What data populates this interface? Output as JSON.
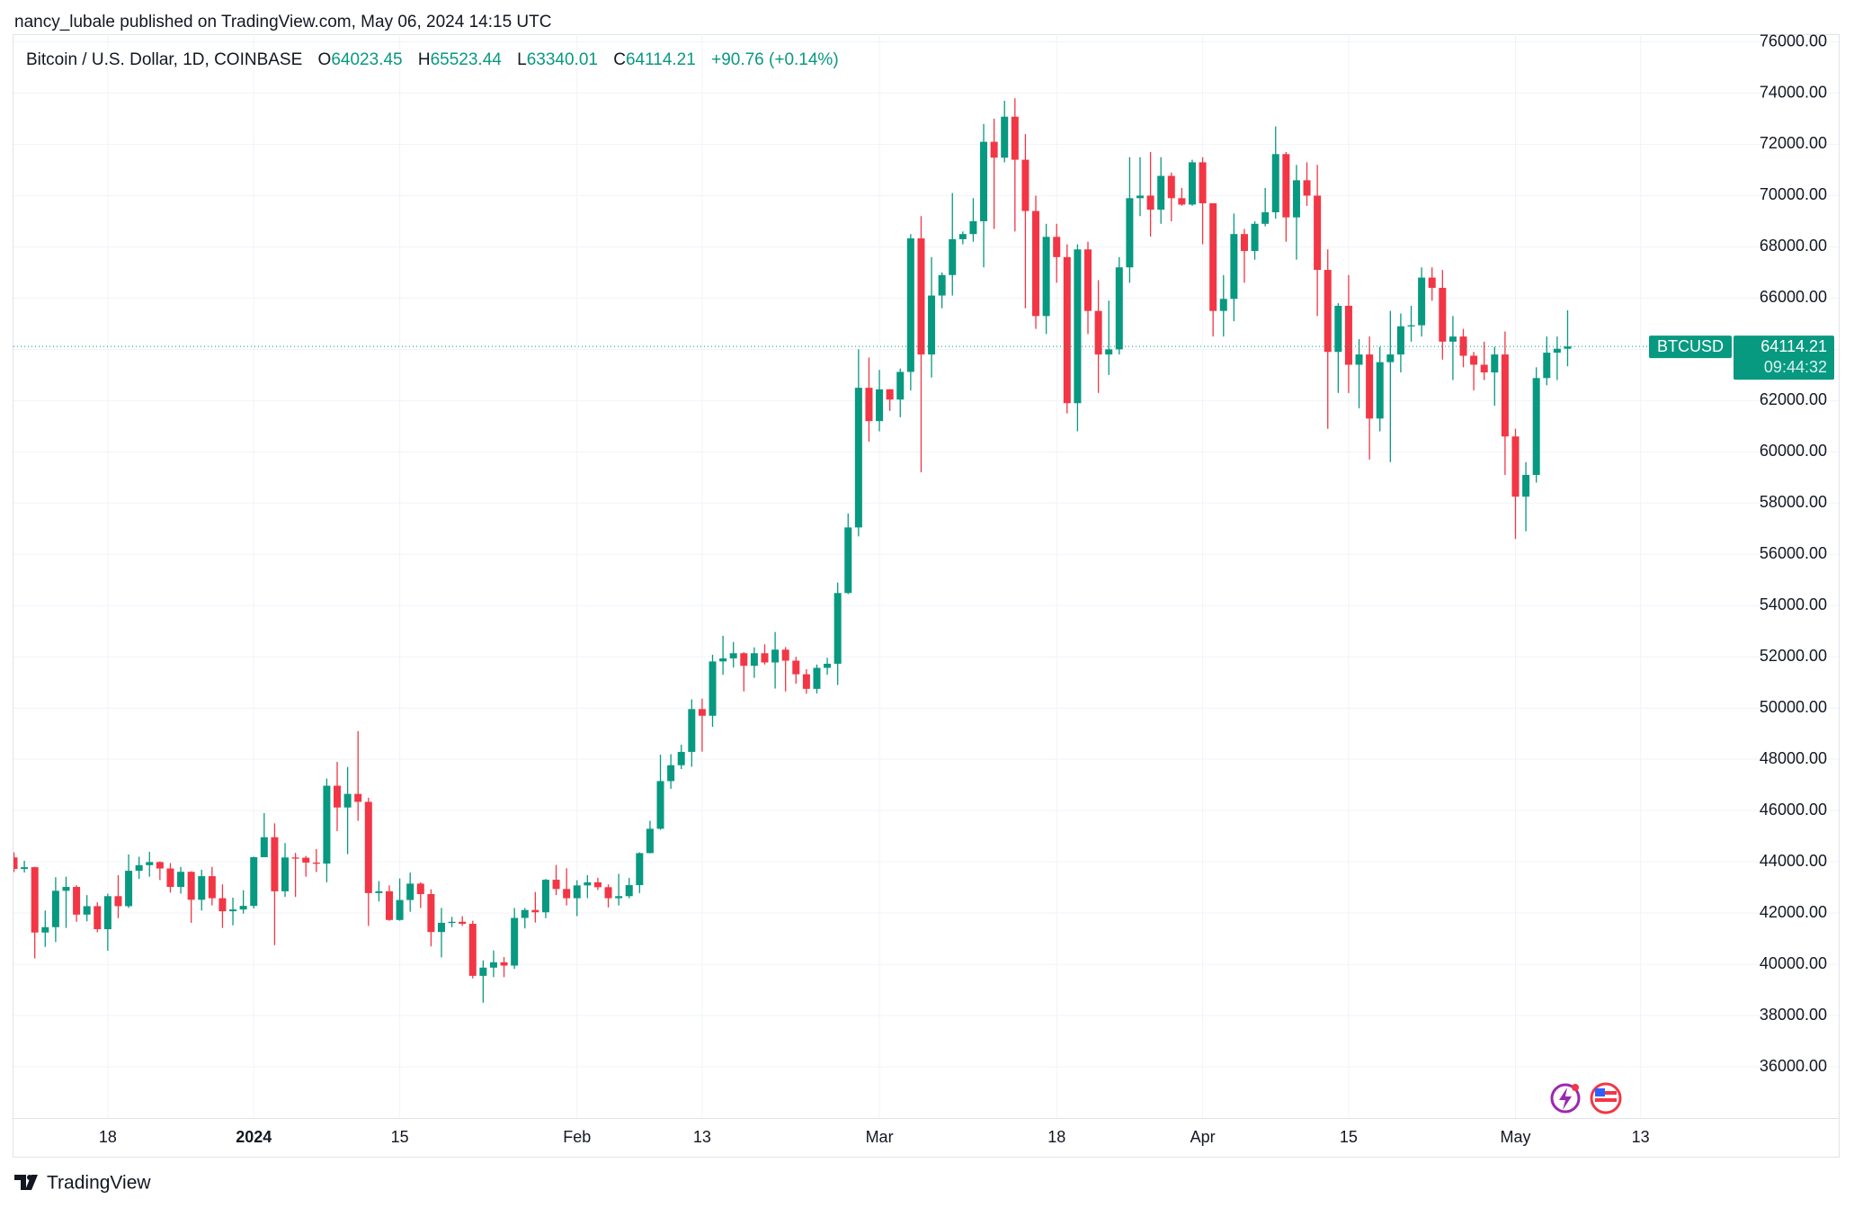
{
  "header": {
    "text": "nancy_lubale published on TradingView.com, May 06, 2024 14:15 UTC"
  },
  "chart_data": {
    "type": "candlestick",
    "legend": {
      "symbol": "Bitcoin / U.S. Dollar, 1D, COINBASE",
      "o": "O",
      "h": "H",
      "l": "L",
      "c": "C",
      "change": "+90.76",
      "change_pct": "(+0.14%)"
    },
    "last_price_tag": {
      "symbol": "BTCUSD",
      "countdown": "09:44:32"
    },
    "up_color": "#089981",
    "down_color": "#f23645",
    "grid": true,
    "xlim": [
      "2023-12-09",
      "2024-06-01"
    ],
    "xticks": [
      {
        "value": "2023-12-18",
        "label": "18"
      },
      {
        "value": "2024-01-01",
        "label": "2024",
        "bold": true
      },
      {
        "value": "2024-01-15",
        "label": "15"
      },
      {
        "value": "2024-02-01",
        "label": "Feb"
      },
      {
        "value": "2024-02-13",
        "label": "13"
      },
      {
        "value": "2024-03-01",
        "label": "Mar"
      },
      {
        "value": "2024-03-18",
        "label": "18"
      },
      {
        "value": "2024-04-01",
        "label": "Apr"
      },
      {
        "value": "2024-04-15",
        "label": "15"
      },
      {
        "value": "2024-05-01",
        "label": "May"
      },
      {
        "value": "2024-05-13",
        "label": "13"
      }
    ],
    "ylim": [
      34000,
      76300
    ],
    "yticks": [
      {
        "value": 76000,
        "label": "76000.00"
      },
      {
        "value": 74000,
        "label": "74000.00"
      },
      {
        "value": 72000,
        "label": "72000.00"
      },
      {
        "value": 70000,
        "label": "70000.00"
      },
      {
        "value": 68000,
        "label": "68000.00"
      },
      {
        "value": 66000,
        "label": "66000.00"
      },
      {
        "value": 64000,
        "label": "64000.00"
      },
      {
        "value": 62000,
        "label": "62000.00"
      },
      {
        "value": 60000,
        "label": "60000.00"
      },
      {
        "value": 58000,
        "label": "58000.00"
      },
      {
        "value": 56000,
        "label": "56000.00"
      },
      {
        "value": 54000,
        "label": "54000.00"
      },
      {
        "value": 52000,
        "label": "52000.00"
      },
      {
        "value": 50000,
        "label": "50000.00"
      },
      {
        "value": 48000,
        "label": "48000.00"
      },
      {
        "value": 46000,
        "label": "46000.00"
      },
      {
        "value": 44000,
        "label": "44000.00"
      },
      {
        "value": 42000,
        "label": "42000.00"
      },
      {
        "value": 40000,
        "label": "40000.00"
      },
      {
        "value": 38000,
        "label": "38000.00"
      },
      {
        "value": 36000,
        "label": "36000.00"
      }
    ],
    "x": [
      "2023-12-09",
      "2023-12-10",
      "2023-12-11",
      "2023-12-12",
      "2023-12-13",
      "2023-12-14",
      "2023-12-15",
      "2023-12-16",
      "2023-12-17",
      "2023-12-18",
      "2023-12-19",
      "2023-12-20",
      "2023-12-21",
      "2023-12-22",
      "2023-12-23",
      "2023-12-24",
      "2023-12-25",
      "2023-12-26",
      "2023-12-27",
      "2023-12-28",
      "2023-12-29",
      "2023-12-30",
      "2023-12-31",
      "2024-01-01",
      "2024-01-02",
      "2024-01-03",
      "2024-01-04",
      "2024-01-05",
      "2024-01-06",
      "2024-01-07",
      "2024-01-08",
      "2024-01-09",
      "2024-01-10",
      "2024-01-11",
      "2024-01-12",
      "2024-01-13",
      "2024-01-14",
      "2024-01-15",
      "2024-01-16",
      "2024-01-17",
      "2024-01-18",
      "2024-01-19",
      "2024-01-20",
      "2024-01-21",
      "2024-01-22",
      "2024-01-23",
      "2024-01-24",
      "2024-01-25",
      "2024-01-26",
      "2024-01-27",
      "2024-01-28",
      "2024-01-29",
      "2024-01-30",
      "2024-01-31",
      "2024-02-01",
      "2024-02-02",
      "2024-02-03",
      "2024-02-04",
      "2024-02-05",
      "2024-02-06",
      "2024-02-07",
      "2024-02-08",
      "2024-02-09",
      "2024-02-10",
      "2024-02-11",
      "2024-02-12",
      "2024-02-13",
      "2024-02-14",
      "2024-02-15",
      "2024-02-16",
      "2024-02-17",
      "2024-02-18",
      "2024-02-19",
      "2024-02-20",
      "2024-02-21",
      "2024-02-22",
      "2024-02-23",
      "2024-02-24",
      "2024-02-25",
      "2024-02-26",
      "2024-02-27",
      "2024-02-28",
      "2024-02-29",
      "2024-03-01",
      "2024-03-02",
      "2024-03-03",
      "2024-03-04",
      "2024-03-05",
      "2024-03-06",
      "2024-03-07",
      "2024-03-08",
      "2024-03-09",
      "2024-03-10",
      "2024-03-11",
      "2024-03-12",
      "2024-03-13",
      "2024-03-14",
      "2024-03-15",
      "2024-03-16",
      "2024-03-17",
      "2024-03-18",
      "2024-03-19",
      "2024-03-20",
      "2024-03-21",
      "2024-03-22",
      "2024-03-23",
      "2024-03-24",
      "2024-03-25",
      "2024-03-26",
      "2024-03-27",
      "2024-03-28",
      "2024-03-29",
      "2024-03-30",
      "2024-03-31",
      "2024-04-01",
      "2024-04-02",
      "2024-04-03",
      "2024-04-04",
      "2024-04-05",
      "2024-04-06",
      "2024-04-07",
      "2024-04-08",
      "2024-04-09",
      "2024-04-10",
      "2024-04-11",
      "2024-04-12",
      "2024-04-13",
      "2024-04-14",
      "2024-04-15",
      "2024-04-16",
      "2024-04-17",
      "2024-04-18",
      "2024-04-19",
      "2024-04-20",
      "2024-04-21",
      "2024-04-22",
      "2024-04-23",
      "2024-04-24",
      "2024-04-25",
      "2024-04-26",
      "2024-04-27",
      "2024-04-28",
      "2024-04-29",
      "2024-04-30",
      "2024-05-01",
      "2024-05-02",
      "2024-05-03",
      "2024-05-04",
      "2024-05-05",
      "2024-05-06"
    ],
    "open": [
      44170,
      43720,
      43790,
      41240,
      41450,
      42870,
      43020,
      41940,
      42270,
      41370,
      42660,
      42270,
      43650,
      43870,
      43990,
      43740,
      43020,
      43610,
      42520,
      43440,
      42580,
      42070,
      42140,
      42280,
      44180,
      44960,
      42850,
      44170,
      44160,
      43970,
      43930,
      46970,
      46120,
      46650,
      46340,
      42780,
      42850,
      41730,
      42510,
      43150,
      42740,
      41260,
      41620,
      41660,
      41580,
      39550,
      39870,
      40080,
      39950,
      41810,
      42120,
      42030,
      43300,
      42940,
      42580,
      43080,
      43200,
      43010,
      42580,
      42660,
      43090,
      44340,
      45290,
      47150,
      47770,
      48290,
      49960,
      49700,
      51820,
      51940,
      52140,
      51650,
      52140,
      51780,
      52280,
      51850,
      51320,
      50750,
      51570,
      51730,
      54490,
      57050,
      62500,
      61200,
      62440,
      62040,
      63120,
      68330,
      63800,
      66100,
      66900,
      68300,
      68500,
      69000,
      72100,
      71480,
      73080,
      71400,
      69400,
      65300,
      68390,
      67600,
      61900,
      67900,
      65500,
      63800,
      64000,
      67200,
      69900,
      70000,
      69450,
      70770,
      69900,
      69650,
      71300,
      69700,
      65500,
      65970,
      68500,
      67840,
      68900,
      69350,
      71620,
      69150,
      70600,
      70000,
      67100,
      63900,
      65700,
      63400,
      63800,
      61300,
      63500,
      63800,
      64900,
      64940,
      66800,
      66400,
      64300,
      64500,
      63750,
      63400,
      63100,
      63800,
      60600,
      58250,
      59100,
      62880,
      63870,
      64023.45
    ],
    "high": [
      44370,
      44040,
      43810,
      42100,
      43400,
      43420,
      43090,
      42700,
      42420,
      42760,
      43480,
      44290,
      44200,
      44390,
      44020,
      43950,
      43800,
      43630,
      43690,
      43800,
      43120,
      42600,
      42890,
      44200,
      45900,
      45500,
      44730,
      44350,
      44230,
      44500,
      47250,
      47900,
      47700,
      49100,
      46500,
      43250,
      43080,
      43350,
      43580,
      43200,
      42930,
      42200,
      41850,
      41880,
      41700,
      40150,
      40540,
      40280,
      42200,
      42200,
      42820,
      43330,
      43880,
      43750,
      43280,
      43480,
      43380,
      43120,
      43530,
      43370,
      44370,
      45600,
      48180,
      48200,
      48570,
      50340,
      50370,
      52080,
      52820,
      52580,
      52180,
      52370,
      52490,
      52970,
      52380,
      52000,
      51520,
      51700,
      51960,
      54900,
      57600,
      64000,
      63680,
      63200,
      62450,
      63250,
      68500,
      69200,
      67600,
      67000,
      70100,
      68600,
      69900,
      72800,
      73000,
      73700,
      73800,
      72400,
      70000,
      68900,
      68900,
      68100,
      68100,
      68200,
      66700,
      65900,
      67600,
      71500,
      71500,
      71700,
      71500,
      70900,
      70300,
      71400,
      71500,
      69700,
      66900,
      69300,
      68700,
      69000,
      70300,
      72700,
      71700,
      71200,
      71300,
      71200,
      67900,
      65800,
      66900,
      64400,
      64500,
      64100,
      65500,
      65400,
      65700,
      67200,
      67200,
      67100,
      65300,
      64800,
      63900,
      64300,
      64100,
      64700,
      60900,
      59600,
      63300,
      64500,
      64500,
      65523.44
    ],
    "low": [
      43600,
      43580,
      40230,
      40680,
      40870,
      41420,
      41660,
      41680,
      41250,
      40530,
      41800,
      42200,
      43330,
      43420,
      43290,
      42800,
      42760,
      41620,
      42100,
      42300,
      41420,
      41520,
      41980,
      42180,
      44180,
      40750,
      42630,
      42630,
      43420,
      43600,
      43200,
      45200,
      44300,
      45600,
      41500,
      42450,
      41700,
      41700,
      42050,
      42200,
      40700,
      40270,
      41450,
      41500,
      39450,
      38500,
      39500,
      39500,
      39820,
      41400,
      41630,
      41800,
      42700,
      42300,
      41880,
      42580,
      42900,
      42220,
      42300,
      42580,
      42780,
      44330,
      45250,
      46850,
      47620,
      47710,
      48300,
      49270,
      51300,
      51580,
      50650,
      51180,
      51700,
      50760,
      50650,
      50950,
      50560,
      50570,
      51300,
      50900,
      54450,
      56700,
      60400,
      60800,
      61600,
      61350,
      62400,
      59200,
      62900,
      65600,
      66100,
      68100,
      68200,
      67200,
      68700,
      71300,
      68600,
      65600,
      64800,
      64600,
      66600,
      61500,
      60800,
      64600,
      62300,
      63000,
      63800,
      66600,
      69200,
      68400,
      68900,
      69000,
      69600,
      69600,
      68100,
      64500,
      64500,
      65100,
      66600,
      67500,
      68800,
      69100,
      68200,
      67500,
      69600,
      65300,
      60900,
      62300,
      62300,
      61700,
      59700,
      60800,
      59600,
      63100,
      64300,
      64500,
      65900,
      63600,
      62800,
      63300,
      62400,
      62800,
      61800,
      59100,
      56600,
      56900,
      58800,
      62600,
      62800,
      63340.01
    ],
    "close": [
      43720,
      43790,
      41240,
      41450,
      42870,
      43020,
      41940,
      42270,
      41370,
      42660,
      42270,
      43650,
      43870,
      43990,
      43740,
      43020,
      43610,
      42520,
      43440,
      42580,
      42070,
      42140,
      42280,
      44180,
      44960,
      42850,
      44170,
      44160,
      43970,
      43930,
      46970,
      46120,
      46650,
      46340,
      42780,
      42850,
      41730,
      42510,
      43150,
      42740,
      41260,
      41620,
      41660,
      41580,
      39550,
      39870,
      40080,
      39950,
      41810,
      42120,
      42030,
      43300,
      42940,
      42580,
      43080,
      43200,
      43010,
      42580,
      42660,
      43090,
      44340,
      45290,
      47150,
      47770,
      48290,
      49960,
      49700,
      51820,
      51940,
      52140,
      51650,
      52140,
      51780,
      52280,
      51850,
      51320,
      50750,
      51570,
      51730,
      54490,
      57050,
      62500,
      61200,
      62440,
      62040,
      63120,
      68330,
      63800,
      66100,
      66900,
      68300,
      68500,
      69000,
      72100,
      71480,
      73080,
      71400,
      69400,
      65300,
      68390,
      67600,
      61900,
      67900,
      65500,
      63800,
      64000,
      67200,
      69900,
      70000,
      69450,
      70770,
      69900,
      69650,
      71300,
      69700,
      65500,
      65970,
      68500,
      67840,
      68900,
      69350,
      71620,
      69150,
      70600,
      70000,
      67100,
      63900,
      65700,
      63400,
      63800,
      61300,
      63500,
      63800,
      64900,
      64940,
      66800,
      66400,
      64300,
      64500,
      63750,
      63400,
      63100,
      63800,
      60600,
      58250,
      59100,
      62880,
      63870,
      64023.45,
      64114.21
    ]
  },
  "footer": {
    "brand": "TradingView"
  }
}
